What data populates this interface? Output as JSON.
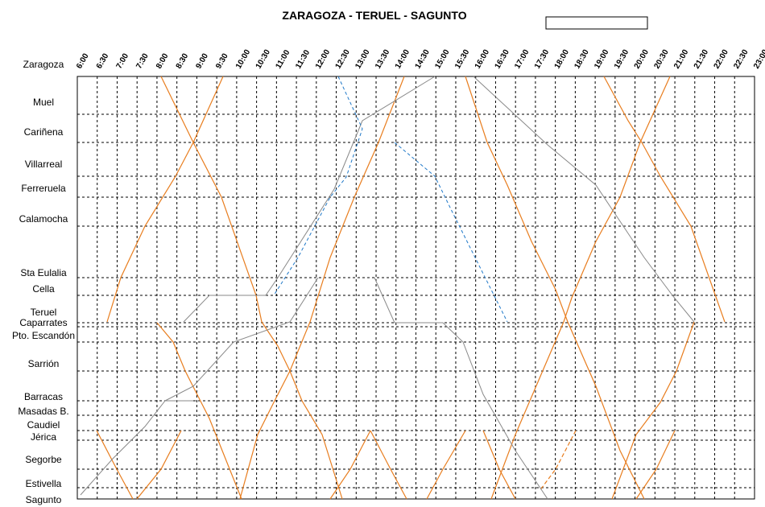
{
  "title": "ZARAGOZA - TERUEL - SAGUNTO",
  "stations": [
    "Zaragoza",
    "Muel",
    "Cariñena",
    "Villarreal",
    "Ferreruela",
    "Calamocha",
    "Sta Eulalia",
    "Cella",
    "Teruel",
    "Caparrates",
    "Pto. Escandón",
    "Sarrión",
    "Barracas",
    "Masadas B.",
    "Caudiel",
    "Jérica",
    "Segorbe",
    "Estivella",
    "Sagunto"
  ],
  "times": [
    "6:00",
    "6:30",
    "7:00",
    "7:30",
    "8:00",
    "8:30",
    "9:00",
    "9:30",
    "10:00",
    "10:30",
    "11:00",
    "11:30",
    "12:00",
    "12:30",
    "13:00",
    "13:30",
    "14:00",
    "14:30",
    "15:00",
    "15:30",
    "16:00",
    "16:30",
    "17:00",
    "17:30",
    "18:00",
    "18:30",
    "19:00",
    "19:30",
    "20:00",
    "20:30",
    "21:00",
    "21:30",
    "22:00",
    "22:30",
    "23:00"
  ]
}
